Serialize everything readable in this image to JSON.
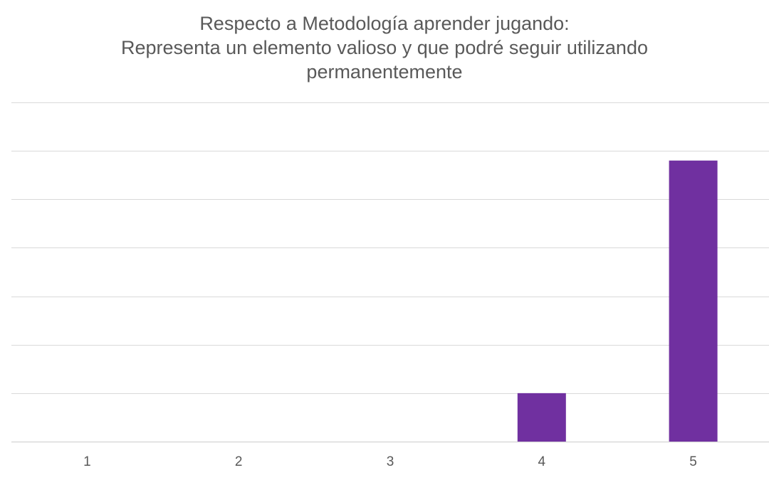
{
  "chart_data": {
    "type": "bar",
    "title_lines": [
      "Respecto a Metodología aprender jugando:",
      "Representa un elemento valioso y que podré seguir utilizando",
      "permanentemente"
    ],
    "xlabel": "",
    "ylabel": "",
    "categories": [
      "1",
      "2",
      "3",
      "4",
      "5"
    ],
    "values": [
      0,
      0,
      0,
      1,
      5.8
    ],
    "ylim": [
      0,
      7
    ],
    "grid": true,
    "legend": "none",
    "bar_color": "#7030A0",
    "grid_color": "#D9D9D9"
  }
}
